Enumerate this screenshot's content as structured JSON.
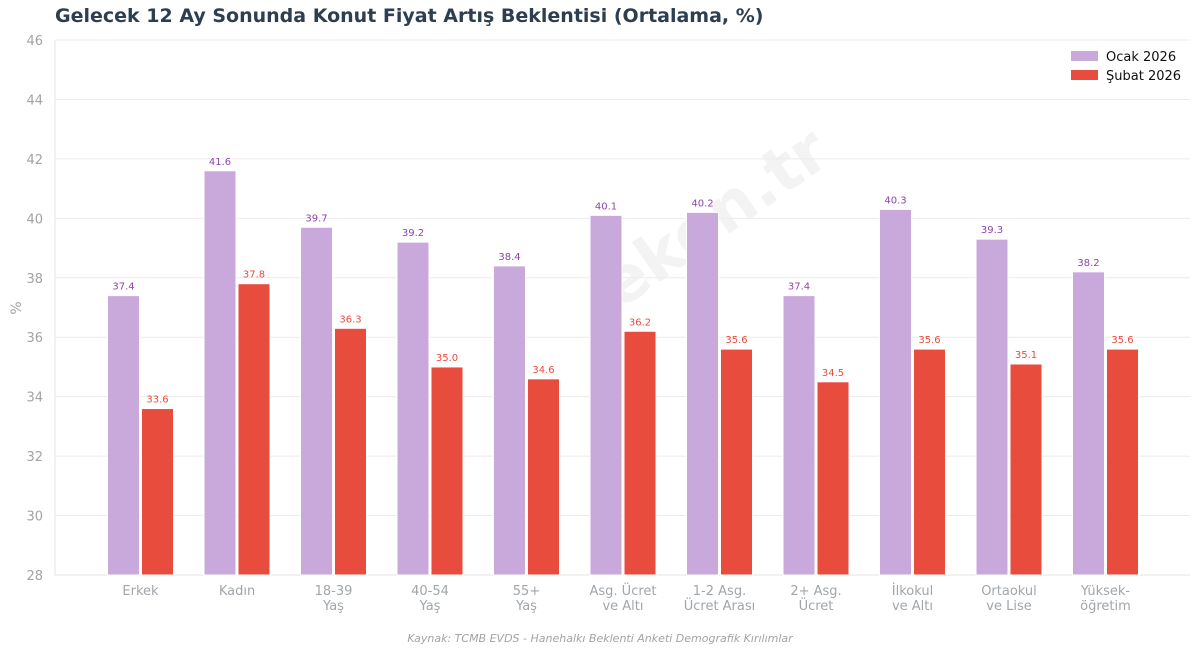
{
  "chart_data": {
    "type": "bar",
    "title": "Gelecek 12 Ay Sonunda Konut Fiyat Artış Beklentisi (Ortalama, %)",
    "xlabel": "",
    "ylabel": "%",
    "ylim": [
      28,
      46
    ],
    "yticks": [
      28,
      30,
      32,
      34,
      36,
      38,
      40,
      42,
      44,
      46
    ],
    "grid": true,
    "legend_position": "top-right",
    "categories": [
      [
        "Erkek"
      ],
      [
        "Kadın"
      ],
      [
        "18-39",
        "Yaş"
      ],
      [
        "40-54",
        "Yaş"
      ],
      [
        "55+",
        "Yaş"
      ],
      [
        "Asg. Ücret",
        "ve Altı"
      ],
      [
        "1-2 Asg.",
        "Ücret Arası"
      ],
      [
        "2+ Asg.",
        "Ücret"
      ],
      [
        "İlkokul",
        "ve Altı"
      ],
      [
        "Ortaokul",
        "ve Lise"
      ],
      [
        "Yüksek-",
        "öğretim"
      ]
    ],
    "series": [
      {
        "name": "Ocak 2026",
        "color": "#c9a9db",
        "label_color": "#8e44ad",
        "values": [
          37.4,
          41.6,
          39.7,
          39.2,
          38.4,
          40.1,
          40.2,
          37.4,
          40.3,
          39.3,
          38.2
        ]
      },
      {
        "name": "Şubat 2026",
        "color": "#e74c3c",
        "label_color": "#e74c3c",
        "values": [
          33.6,
          37.8,
          36.3,
          35.0,
          34.6,
          36.2,
          35.6,
          34.5,
          35.6,
          35.1,
          35.6
        ]
      }
    ],
    "source": "Kaynak: TCMB EVDS - Hanehalkı Beklenti Anketi Demografik Kırılımlar"
  }
}
